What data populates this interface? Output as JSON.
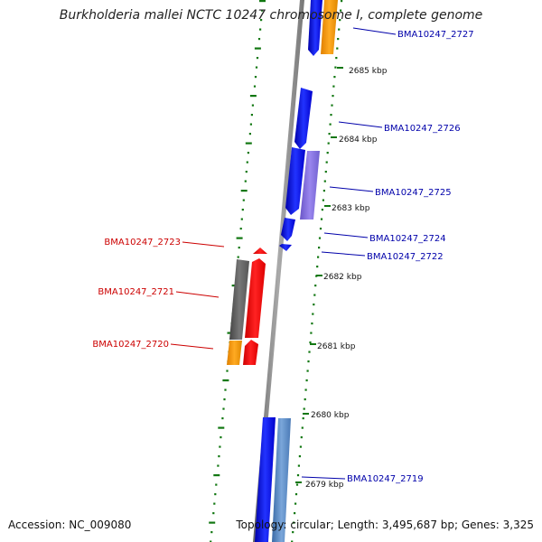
{
  "title": "Burkholderia mallei NCTC 10247 chromosome I, complete genome",
  "accession_text": "Accession: NC_009080",
  "summary_text": "Topology: circular; Length: 3,495,687 bp; Genes: 3,325",
  "colors": {
    "forward_gene": "#0000ff",
    "forward_label": "#0000aa",
    "reverse_gene": "#ff0000",
    "reverse_label": "#cc0000",
    "orange": "#ff9900",
    "gray_gene": "#666666",
    "purple_gene": "#8870e0",
    "steel_gene": "#5a8ac6",
    "backbone": "#888888",
    "ticks": "#117711"
  },
  "scale_ticks": [
    {
      "label": "2685 kbp"
    },
    {
      "label": "2684 kbp"
    },
    {
      "label": "2683 kbp"
    },
    {
      "label": "2682 kbp"
    },
    {
      "label": "2681 kbp"
    },
    {
      "label": "2680 kbp"
    },
    {
      "label": "2679 kbp"
    }
  ],
  "forward_genes": [
    "BMA10247_2727",
    "BMA10247_2726",
    "BMA10247_2725",
    "BMA10247_2724",
    "BMA10247_2722",
    "BMA10247_2719"
  ],
  "reverse_genes": [
    "BMA10247_2723",
    "BMA10247_2721",
    "BMA10247_2720"
  ]
}
